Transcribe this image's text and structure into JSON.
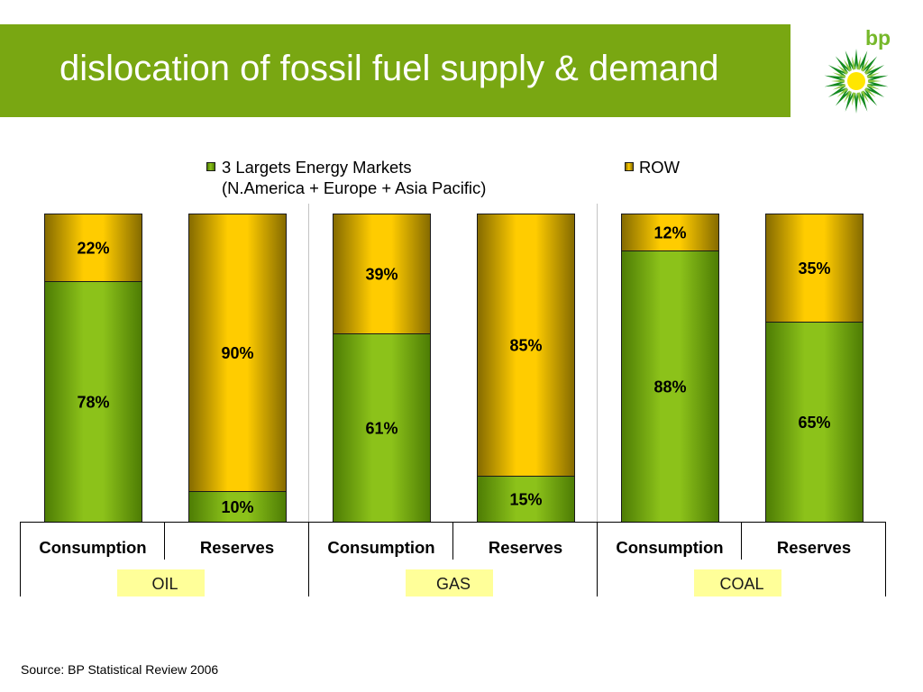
{
  "header": {
    "title": "dislocation of fossil fuel supply & demand",
    "brand": "bp"
  },
  "colors": {
    "header_bg": "#79a712",
    "title_text": "#ffffff",
    "brand_green": "#76b82a",
    "logo_dark_green": "#138a1f",
    "logo_light_green": "#8cc63f",
    "logo_yellow": "#ffe600",
    "group_label_bg": "#ffff99",
    "separator": "#c4c4c4"
  },
  "chart_data": {
    "type": "bar",
    "stacked": true,
    "categories": [
      "Consumption",
      "Reserves",
      "Consumption",
      "Reserves",
      "Consumption",
      "Reserves"
    ],
    "groups": [
      {
        "label": "OIL",
        "category_indices": [
          0,
          1
        ]
      },
      {
        "label": "GAS",
        "category_indices": [
          2,
          3
        ]
      },
      {
        "label": "COAL",
        "category_indices": [
          4,
          5
        ]
      }
    ],
    "series": [
      {
        "name": "3 Largets Energy Markets",
        "name_line2": "(N.America + Europe + Asia Pacific)",
        "values": [
          78,
          10,
          61,
          15,
          88,
          65
        ],
        "color": "#8cc21a",
        "edge_color": "#4d7c04"
      },
      {
        "name": "ROW",
        "values": [
          22,
          90,
          39,
          85,
          12,
          35
        ],
        "color": "#ffcc00",
        "edge_color": "#846a00"
      }
    ],
    "value_suffix": "%",
    "ylim": [
      0,
      100
    ],
    "legend_position": "top",
    "grid": false
  },
  "footer": {
    "source": "Source: BP Statistical Review 2006"
  }
}
